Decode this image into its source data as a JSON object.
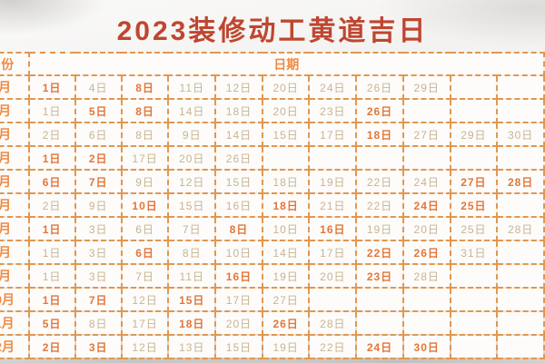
{
  "title": "2023装修动工黄道吉日",
  "table": {
    "month_header": "月份",
    "date_header": "日期",
    "rows": [
      {
        "month": "1月",
        "days": [
          {
            "day": "1日",
            "highlight": true
          },
          {
            "day": "4日"
          },
          {
            "day": "8日",
            "highlight": true
          },
          {
            "day": "11日"
          },
          {
            "day": "12日"
          },
          {
            "day": "20日"
          },
          {
            "day": "24日"
          },
          {
            "day": "26日"
          },
          {
            "day": "29日"
          },
          {
            "day": ""
          },
          {
            "day": ""
          }
        ]
      },
      {
        "month": "2月",
        "days": [
          {
            "day": "1日"
          },
          {
            "day": "5日",
            "highlight": true
          },
          {
            "day": "8日",
            "highlight": true
          },
          {
            "day": "14日"
          },
          {
            "day": "18日"
          },
          {
            "day": "20日"
          },
          {
            "day": "23日"
          },
          {
            "day": "26日",
            "highlight": true
          },
          {
            "day": ""
          },
          {
            "day": ""
          },
          {
            "day": ""
          }
        ]
      },
      {
        "month": "3月",
        "days": [
          {
            "day": "2日"
          },
          {
            "day": "6日"
          },
          {
            "day": "8日"
          },
          {
            "day": "9日"
          },
          {
            "day": "14日"
          },
          {
            "day": "15日"
          },
          {
            "day": "17日"
          },
          {
            "day": "18日",
            "highlight": true
          },
          {
            "day": "27日"
          },
          {
            "day": "29日"
          },
          {
            "day": "30日"
          }
        ]
      },
      {
        "month": "4月",
        "days": [
          {
            "day": "1日",
            "highlight": true
          },
          {
            "day": "2日",
            "highlight": true
          },
          {
            "day": "17日"
          },
          {
            "day": "20日"
          },
          {
            "day": "26日"
          },
          {
            "day": ""
          },
          {
            "day": ""
          },
          {
            "day": ""
          },
          {
            "day": ""
          },
          {
            "day": ""
          },
          {
            "day": ""
          }
        ]
      },
      {
        "month": "5月",
        "days": [
          {
            "day": "6日",
            "highlight": true
          },
          {
            "day": "7日",
            "highlight": true
          },
          {
            "day": "9日"
          },
          {
            "day": "12日"
          },
          {
            "day": "15日"
          },
          {
            "day": "18日"
          },
          {
            "day": "19日"
          },
          {
            "day": "22日"
          },
          {
            "day": "24日"
          },
          {
            "day": "27日",
            "highlight": true
          },
          {
            "day": "28日",
            "highlight": true
          }
        ]
      },
      {
        "month": "6月",
        "days": [
          {
            "day": "2日"
          },
          {
            "day": "9日"
          },
          {
            "day": "10日",
            "highlight": true
          },
          {
            "day": "15日"
          },
          {
            "day": "16日"
          },
          {
            "day": "18日",
            "highlight": true
          },
          {
            "day": "21日"
          },
          {
            "day": "22日"
          },
          {
            "day": "24日",
            "highlight": true
          },
          {
            "day": "25日",
            "highlight": true
          },
          {
            "day": ""
          }
        ]
      },
      {
        "month": "7月",
        "days": [
          {
            "day": "1日",
            "highlight": true
          },
          {
            "day": "3日"
          },
          {
            "day": "6日"
          },
          {
            "day": "7日"
          },
          {
            "day": "8日",
            "highlight": true
          },
          {
            "day": "10日"
          },
          {
            "day": "16日",
            "highlight": true
          },
          {
            "day": "19日"
          },
          {
            "day": "20日"
          },
          {
            "day": "25日"
          },
          {
            "day": "28日"
          }
        ]
      },
      {
        "month": "8月",
        "days": [
          {
            "day": "1日"
          },
          {
            "day": "3日"
          },
          {
            "day": "6日",
            "highlight": true
          },
          {
            "day": "8日"
          },
          {
            "day": "10日"
          },
          {
            "day": "14日"
          },
          {
            "day": "17日"
          },
          {
            "day": "22日",
            "highlight": true
          },
          {
            "day": "26日",
            "highlight": true
          },
          {
            "day": "31日"
          },
          {
            "day": ""
          }
        ]
      },
      {
        "month": "9月",
        "days": [
          {
            "day": "1日"
          },
          {
            "day": "3日"
          },
          {
            "day": "7日"
          },
          {
            "day": "11日"
          },
          {
            "day": "16日",
            "highlight": true
          },
          {
            "day": "19日"
          },
          {
            "day": "20日"
          },
          {
            "day": "23日",
            "highlight": true
          },
          {
            "day": "28日"
          },
          {
            "day": ""
          },
          {
            "day": ""
          }
        ]
      },
      {
        "month": "10月",
        "days": [
          {
            "day": "1日",
            "highlight": true
          },
          {
            "day": "7日",
            "highlight": true
          },
          {
            "day": "12日"
          },
          {
            "day": "15日",
            "highlight": true
          },
          {
            "day": "17日"
          },
          {
            "day": "27日"
          },
          {
            "day": ""
          },
          {
            "day": ""
          },
          {
            "day": ""
          },
          {
            "day": ""
          },
          {
            "day": ""
          }
        ]
      },
      {
        "month": "11月",
        "days": [
          {
            "day": "5日",
            "highlight": true
          },
          {
            "day": "8日"
          },
          {
            "day": "17日"
          },
          {
            "day": "18日",
            "highlight": true
          },
          {
            "day": "20日"
          },
          {
            "day": "26日",
            "highlight": true
          },
          {
            "day": "28日"
          },
          {
            "day": ""
          },
          {
            "day": ""
          },
          {
            "day": ""
          },
          {
            "day": ""
          }
        ]
      },
      {
        "month": "12月",
        "days": [
          {
            "day": "2日",
            "highlight": true
          },
          {
            "day": "3日",
            "highlight": true
          },
          {
            "day": "12日"
          },
          {
            "day": "13日"
          },
          {
            "day": "15日"
          },
          {
            "day": "19日"
          },
          {
            "day": "22日"
          },
          {
            "day": "24日",
            "highlight": true
          },
          {
            "day": "30日",
            "highlight": true
          },
          {
            "day": ""
          },
          {
            "day": ""
          }
        ]
      }
    ]
  },
  "colors": {
    "title_color": "#bf4630",
    "header_text": "#ef8a43",
    "highlight_day": "#e2763a",
    "regular_day": "#c7b493",
    "grid_border": "#e2974f"
  }
}
